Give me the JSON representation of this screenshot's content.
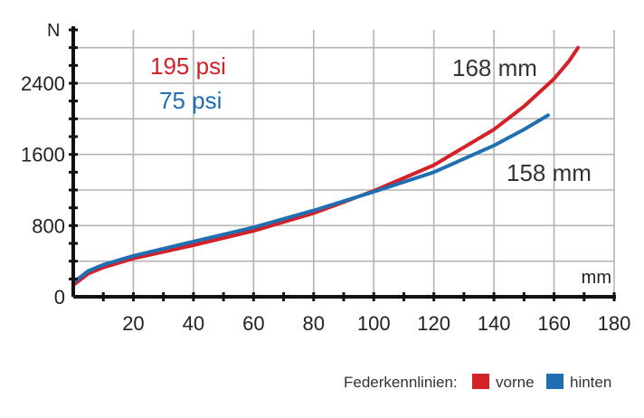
{
  "chart_data": {
    "type": "line",
    "xlabel": "mm",
    "ylabel": "N",
    "xlim": [
      0,
      180
    ],
    "ylim": [
      0,
      3000
    ],
    "x_ticks": [
      20,
      40,
      60,
      80,
      100,
      120,
      140,
      160,
      180
    ],
    "y_ticks": [
      0,
      800,
      1600,
      2400
    ],
    "grid": true,
    "legend_position": "bottom-right",
    "legend_title": "Federkennlinien:",
    "series": [
      {
        "name": "vorne",
        "color": "#d42027",
        "pressure_label": "195 psi",
        "end_label": "168 mm",
        "x": [
          0,
          5,
          10,
          20,
          40,
          60,
          80,
          100,
          120,
          140,
          150,
          160,
          165,
          168
        ],
        "y": [
          130,
          260,
          330,
          430,
          580,
          740,
          940,
          1190,
          1480,
          1880,
          2140,
          2450,
          2650,
          2800
        ]
      },
      {
        "name": "hinten",
        "color": "#1f6fb2",
        "pressure_label": "75 psi",
        "end_label": "158 mm",
        "x": [
          0,
          5,
          10,
          20,
          40,
          60,
          80,
          100,
          120,
          140,
          150,
          158
        ],
        "y": [
          160,
          290,
          360,
          460,
          620,
          780,
          970,
          1180,
          1400,
          1700,
          1880,
          2040
        ]
      }
    ]
  }
}
